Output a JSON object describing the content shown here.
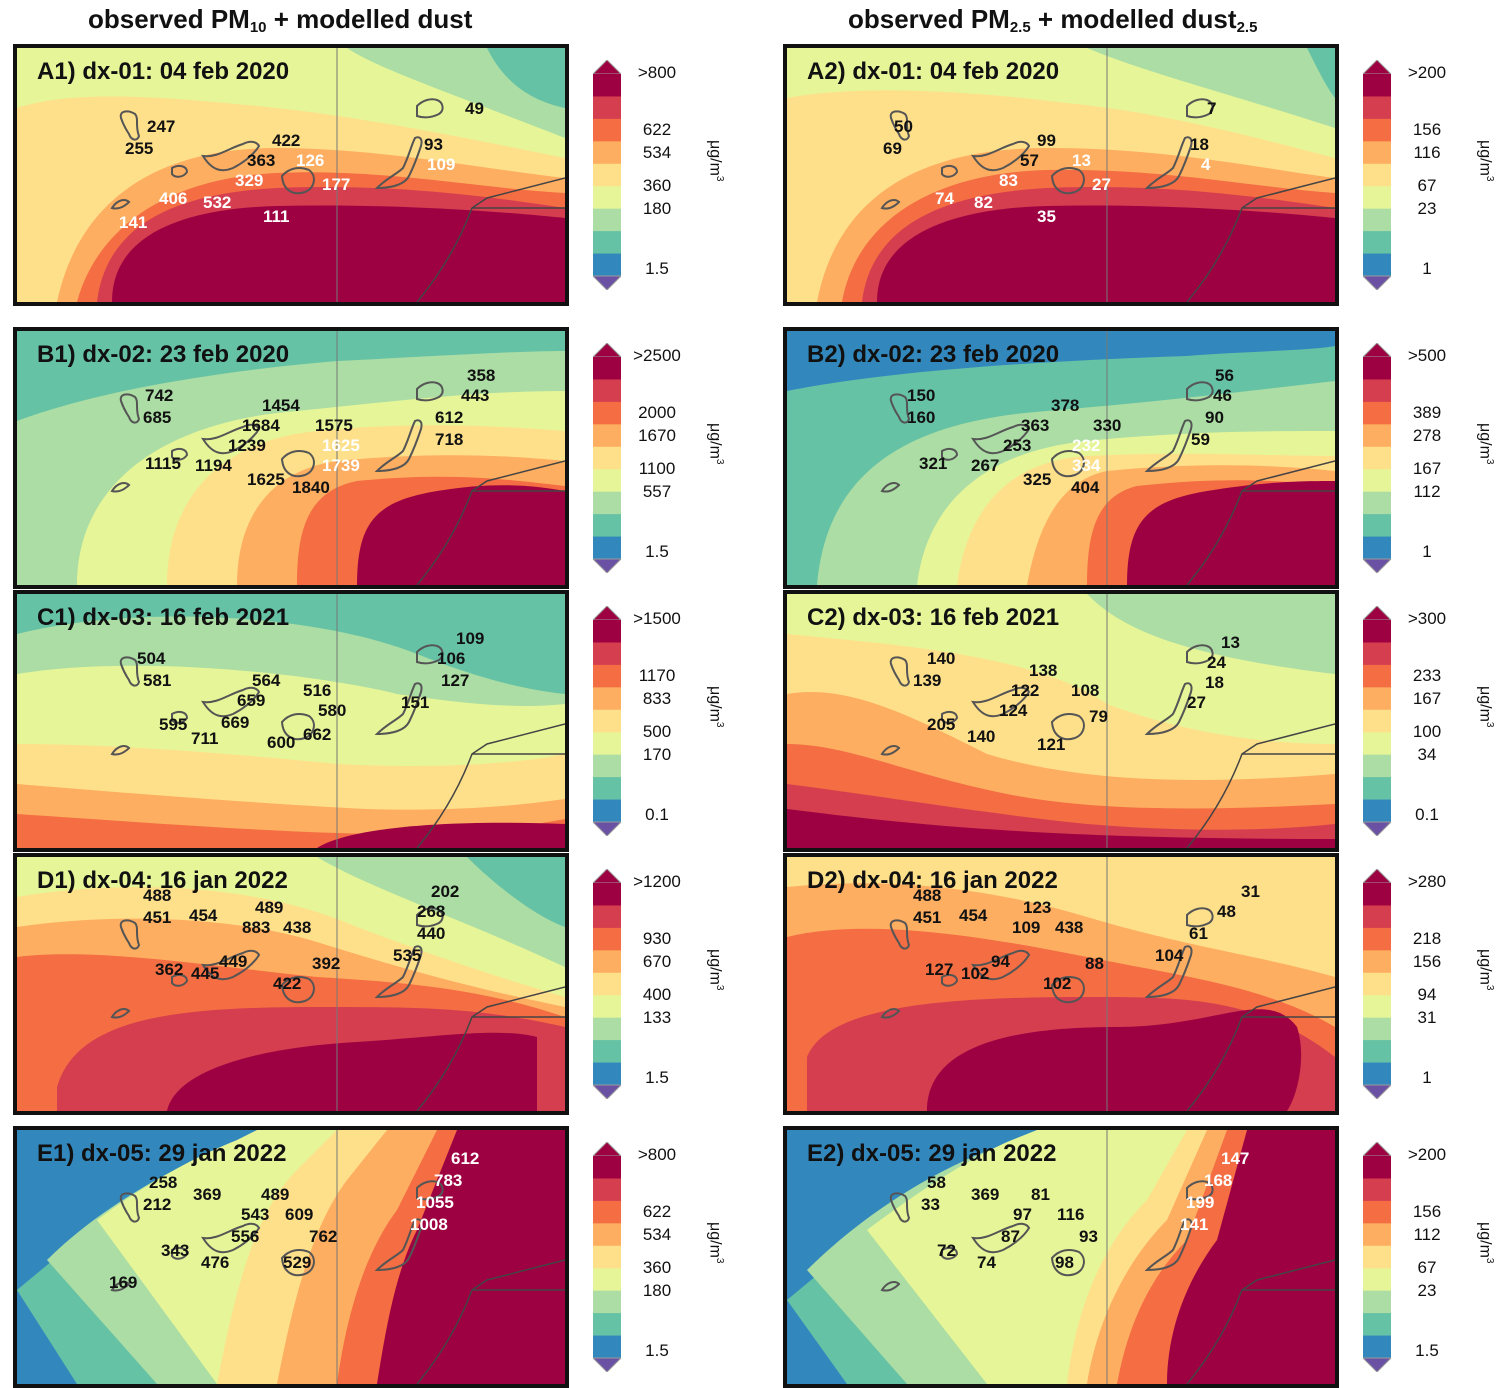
{
  "columns": [
    {
      "title_main": "observed PM",
      "title_sub": "10",
      "title_rest": " + modelled dust",
      "title_sub2": ""
    },
    {
      "title_main": "observed PM",
      "title_sub": "2.5",
      "title_rest": " + modelled dust",
      "title_sub2": "2.5"
    }
  ],
  "unit": "μg/m",
  "unit_sup": "3",
  "colors": [
    "#3288bd",
    "#66c2a5",
    "#abdda4",
    "#e6f598",
    "#fee08b",
    "#fdae61",
    "#f46d43",
    "#d53e4f",
    "#9e0142"
  ],
  "panels": [
    {
      "title": "A1) dx-01: 04 feb 2020",
      "ticks": [
        ">800",
        "622",
        "534",
        "360",
        "180",
        "1.5"
      ],
      "values": [
        [
          "247",
          "dark"
        ],
        [
          "255",
          "dark"
        ],
        [
          "422",
          "dark"
        ],
        [
          "363",
          "dark"
        ],
        [
          "126",
          "light"
        ],
        [
          "329",
          "light"
        ],
        [
          "177",
          "light"
        ],
        [
          "406",
          "light"
        ],
        [
          "532",
          "light"
        ],
        [
          "111",
          "light"
        ],
        [
          "141",
          "light"
        ],
        [
          "49",
          "dark"
        ],
        [
          "93",
          "dark"
        ],
        [
          "109",
          "light"
        ]
      ]
    },
    {
      "title": "A2) dx-01: 04 feb 2020",
      "ticks": [
        ">200",
        "156",
        "116",
        "67",
        "23",
        "1"
      ],
      "values": [
        [
          "50",
          "dark"
        ],
        [
          "69",
          "dark"
        ],
        [
          "99",
          "dark"
        ],
        [
          "57",
          "dark"
        ],
        [
          "13",
          "light"
        ],
        [
          "83",
          "light"
        ],
        [
          "27",
          "light"
        ],
        [
          "74",
          "light"
        ],
        [
          "82",
          "light"
        ],
        [
          "35",
          "light"
        ],
        [
          "7",
          "dark"
        ],
        [
          "18",
          "dark"
        ],
        [
          "4",
          "light"
        ]
      ]
    },
    {
      "title": "B1) dx-02: 23 feb 2020",
      "ticks": [
        ">2500",
        "2000",
        "1670",
        "1100",
        "557",
        "1.5"
      ],
      "values": [
        [
          "742",
          "dark"
        ],
        [
          "685",
          "dark"
        ],
        [
          "1454",
          "dark"
        ],
        [
          "1684",
          "dark"
        ],
        [
          "1575",
          "dark"
        ],
        [
          "1239",
          "dark"
        ],
        [
          "1625",
          "light"
        ],
        [
          "1739",
          "light"
        ],
        [
          "1115",
          "dark"
        ],
        [
          "1194",
          "dark"
        ],
        [
          "1625",
          "dark"
        ],
        [
          "1840",
          "dark"
        ],
        [
          "358",
          "dark"
        ],
        [
          "443",
          "dark"
        ],
        [
          "612",
          "dark"
        ],
        [
          "718",
          "dark"
        ]
      ]
    },
    {
      "title": "B2) dx-02: 23 feb 2020",
      "ticks": [
        ">500",
        "389",
        "278",
        "167",
        "112",
        "1"
      ],
      "values": [
        [
          "150",
          "dark"
        ],
        [
          "160",
          "dark"
        ],
        [
          "378",
          "dark"
        ],
        [
          "363",
          "dark"
        ],
        [
          "330",
          "dark"
        ],
        [
          "253",
          "dark"
        ],
        [
          "232",
          "light"
        ],
        [
          "334",
          "light"
        ],
        [
          "321",
          "dark"
        ],
        [
          "267",
          "dark"
        ],
        [
          "325",
          "dark"
        ],
        [
          "404",
          "dark"
        ],
        [
          "56",
          "dark"
        ],
        [
          "46",
          "dark"
        ],
        [
          "90",
          "dark"
        ],
        [
          "59",
          "dark"
        ]
      ]
    },
    {
      "title": "C1) dx-03: 16 feb 2021",
      "ticks": [
        ">1500",
        "1170",
        "833",
        "500",
        "170",
        "0.1"
      ],
      "values": [
        [
          "504",
          "dark"
        ],
        [
          "581",
          "dark"
        ],
        [
          "564",
          "dark"
        ],
        [
          "659",
          "dark"
        ],
        [
          "516",
          "dark"
        ],
        [
          "580",
          "dark"
        ],
        [
          "595",
          "dark"
        ],
        [
          "711",
          "dark"
        ],
        [
          "669",
          "dark"
        ],
        [
          "600",
          "dark"
        ],
        [
          "662",
          "dark"
        ],
        [
          "109",
          "dark"
        ],
        [
          "106",
          "dark"
        ],
        [
          "127",
          "dark"
        ],
        [
          "151",
          "dark"
        ]
      ]
    },
    {
      "title": "C2) dx-03: 16 feb 2021",
      "ticks": [
        ">300",
        "233",
        "167",
        "100",
        "34",
        "0.1"
      ],
      "values": [
        [
          "140",
          "dark"
        ],
        [
          "139",
          "dark"
        ],
        [
          "138",
          "dark"
        ],
        [
          "122",
          "dark"
        ],
        [
          "108",
          "dark"
        ],
        [
          "124",
          "dark"
        ],
        [
          "79",
          "dark"
        ],
        [
          "205",
          "dark"
        ],
        [
          "140",
          "dark"
        ],
        [
          "121",
          "dark"
        ],
        [
          "13",
          "dark"
        ],
        [
          "24",
          "dark"
        ],
        [
          "18",
          "dark"
        ],
        [
          "27",
          "dark"
        ]
      ]
    },
    {
      "title": "D1) dx-04: 16 jan 2022",
      "ticks": [
        ">1200",
        "930",
        "670",
        "400",
        "133",
        "1.5"
      ],
      "values": [
        [
          "488",
          "dark"
        ],
        [
          "451",
          "dark"
        ],
        [
          "454",
          "dark"
        ],
        [
          "489",
          "dark"
        ],
        [
          "883",
          "dark"
        ],
        [
          "438",
          "dark"
        ],
        [
          "362",
          "dark"
        ],
        [
          "445",
          "dark"
        ],
        [
          "449",
          "dark"
        ],
        [
          "392",
          "dark"
        ],
        [
          "422",
          "dark"
        ],
        [
          "202",
          "dark"
        ],
        [
          "268",
          "dark"
        ],
        [
          "440",
          "dark"
        ],
        [
          "535",
          "dark"
        ]
      ]
    },
    {
      "title": "D2) dx-04: 16 jan 2022",
      "ticks": [
        ">280",
        "218",
        "156",
        "94",
        "31",
        "1"
      ],
      "values": [
        [
          "488",
          "dark"
        ],
        [
          "451",
          "dark"
        ],
        [
          "454",
          "dark"
        ],
        [
          "123",
          "dark"
        ],
        [
          "109",
          "dark"
        ],
        [
          "438",
          "dark"
        ],
        [
          "127",
          "dark"
        ],
        [
          "102",
          "dark"
        ],
        [
          "94",
          "dark"
        ],
        [
          "88",
          "dark"
        ],
        [
          "102",
          "dark"
        ],
        [
          "31",
          "dark"
        ],
        [
          "48",
          "dark"
        ],
        [
          "61",
          "dark"
        ],
        [
          "104",
          "dark"
        ]
      ]
    },
    {
      "title": "E1) dx-05: 29 jan 2022",
      "ticks": [
        ">800",
        "622",
        "534",
        "360",
        "180",
        "1.5"
      ],
      "values": [
        [
          "258",
          "dark"
        ],
        [
          "212",
          "dark"
        ],
        [
          "369",
          "dark"
        ],
        [
          "489",
          "dark"
        ],
        [
          "543",
          "dark"
        ],
        [
          "609",
          "dark"
        ],
        [
          "556",
          "dark"
        ],
        [
          "762",
          "dark"
        ],
        [
          "343",
          "dark"
        ],
        [
          "476",
          "dark"
        ],
        [
          "529",
          "dark"
        ],
        [
          "169",
          "dark"
        ],
        [
          "612",
          "light"
        ],
        [
          "783",
          "light"
        ],
        [
          "1055",
          "light"
        ],
        [
          "1008",
          "light"
        ]
      ]
    },
    {
      "title": "E2) dx-05: 29 jan 2022",
      "ticks": [
        ">200",
        "156",
        "112",
        "67",
        "23",
        "1.5"
      ],
      "values": [
        [
          "58",
          "dark"
        ],
        [
          "33",
          "dark"
        ],
        [
          "369",
          "dark"
        ],
        [
          "81",
          "dark"
        ],
        [
          "97",
          "dark"
        ],
        [
          "116",
          "dark"
        ],
        [
          "87",
          "dark"
        ],
        [
          "93",
          "dark"
        ],
        [
          "72",
          "dark"
        ],
        [
          "74",
          "dark"
        ],
        [
          "98",
          "dark"
        ],
        [
          "147",
          "light"
        ],
        [
          "168",
          "light"
        ],
        [
          "199",
          "light"
        ],
        [
          "141",
          "light"
        ]
      ]
    }
  ]
}
